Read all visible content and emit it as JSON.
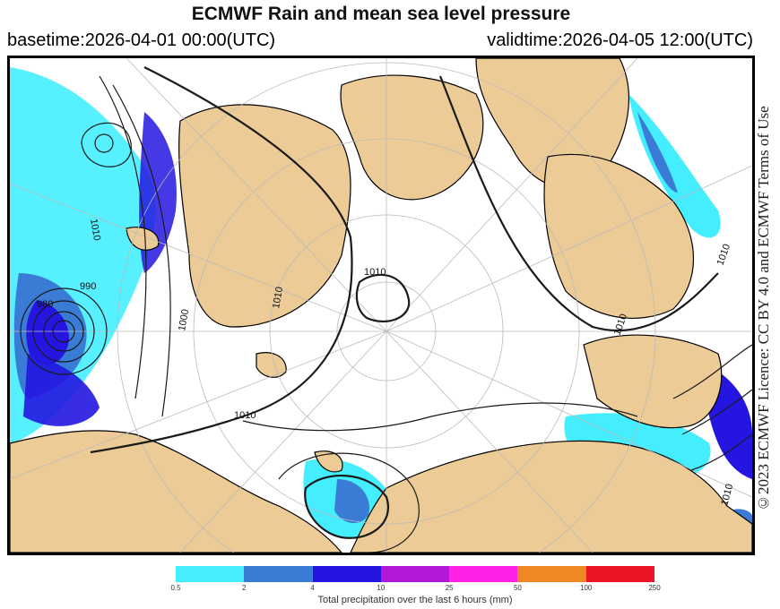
{
  "header": {
    "title": "ECMWF Rain and mean sea level pressure",
    "basetime": "basetime:2026-04-01 00:00(UTC)",
    "validtime": "validtime:2026-04-05 12:00(UTC)"
  },
  "license": "©2023 ECMWF Licence: CC BY 4.0 and ECMWF Terms of Use",
  "isobar_labels": [
    "1010",
    "1010",
    "1010",
    "1010",
    "1010",
    "1010",
    "1010",
    "990",
    "980",
    "1000"
  ],
  "legend": {
    "caption": "Total precipitation over the last 6 hours (mm)",
    "ticks": [
      "0.5",
      "2",
      "4",
      "10",
      "25",
      "50",
      "100",
      "250"
    ],
    "colors": [
      "#44eeff",
      "#3a7bd6",
      "#2416e0",
      "#b118d8",
      "#ff22e6",
      "#ef8822",
      "#ee1428"
    ]
  },
  "colors": {
    "land": "#eccb96",
    "ocean": "#ffffff",
    "coast": "#000000",
    "isobar": "#1a1a1a",
    "graticule": "#bbbbbb"
  }
}
